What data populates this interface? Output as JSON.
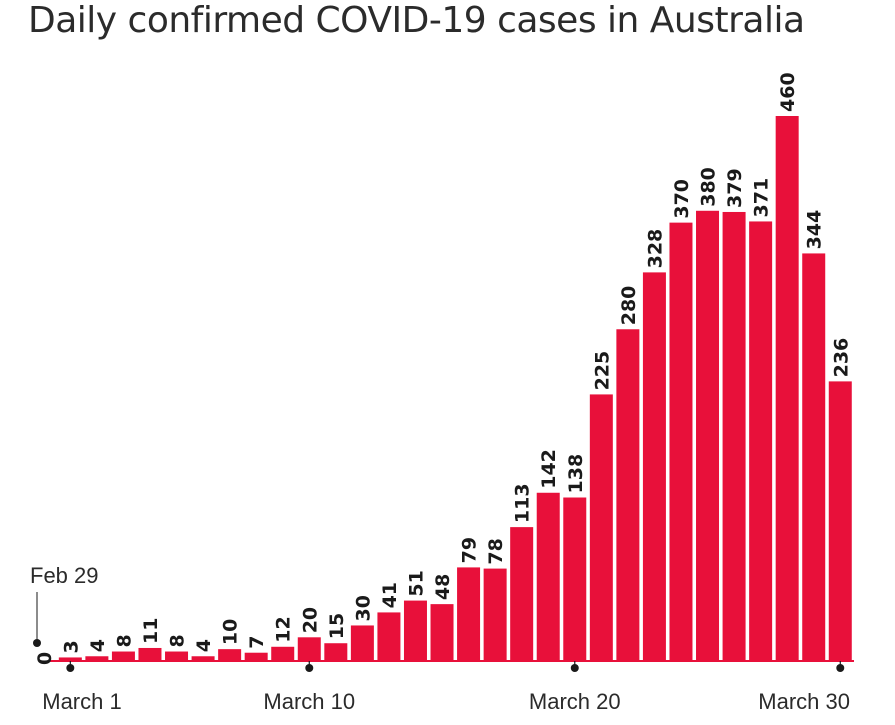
{
  "chart_data": {
    "type": "bar",
    "title": "Daily confirmed COVID-19 cases in Australia",
    "xlabel": "",
    "ylabel": "",
    "ylim": [
      0,
      460
    ],
    "grid": false,
    "bar_color": "#e8103a",
    "categories": [
      "Feb 29",
      "Mar 1",
      "Mar 2",
      "Mar 3",
      "Mar 4",
      "Mar 5",
      "Mar 6",
      "Mar 7",
      "Mar 8",
      "Mar 9",
      "Mar 10",
      "Mar 11",
      "Mar 12",
      "Mar 13",
      "Mar 14",
      "Mar 15",
      "Mar 16",
      "Mar 17",
      "Mar 18",
      "Mar 19",
      "Mar 20",
      "Mar 21",
      "Mar 22",
      "Mar 23",
      "Mar 24",
      "Mar 25",
      "Mar 26",
      "Mar 27",
      "Mar 28",
      "Mar 29",
      "Mar 30"
    ],
    "values": [
      0,
      3,
      4,
      8,
      11,
      8,
      4,
      10,
      7,
      12,
      20,
      15,
      30,
      41,
      51,
      48,
      79,
      78,
      113,
      142,
      138,
      225,
      280,
      328,
      370,
      380,
      379,
      371,
      460,
      344,
      236
    ],
    "zero_label": "0",
    "x_ticks": [
      {
        "index": 1,
        "label": "March 1"
      },
      {
        "index": 10,
        "label": "March 10"
      },
      {
        "index": 20,
        "label": "March 20"
      },
      {
        "index": 30,
        "label": "March 30"
      }
    ],
    "annotation": {
      "index": 0,
      "label": "Feb 29"
    }
  }
}
